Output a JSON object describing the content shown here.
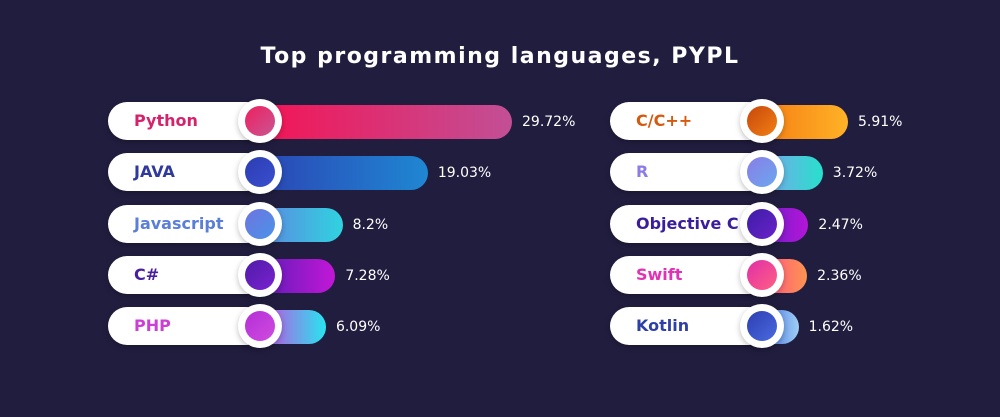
{
  "chart_data": {
    "type": "bar",
    "title": "Top programming languages, PYPL",
    "left": [
      {
        "name": "Python",
        "value": 29.72,
        "label": "29.72%",
        "text_color": "#d6226b",
        "dot_from": "#ee1f5e",
        "dot_to": "#c95694",
        "bar_from": "#f31455",
        "bar_to": "#c24f95"
      },
      {
        "name": "JAVA",
        "value": 19.03,
        "label": "19.03%",
        "text_color": "#2f3a9c",
        "dot_from": "#2b3db1",
        "dot_to": "#3a4fd0",
        "bar_from": "#2b45b4",
        "bar_to": "#1f87d3"
      },
      {
        "name": "Javascript",
        "value": 8.2,
        "label": "8.2%",
        "text_color": "#5b7fd8",
        "dot_from": "#6e74df",
        "dot_to": "#4a93e8",
        "bar_from": "#5f86e0",
        "bar_to": "#2fd3e0"
      },
      {
        "name": "C#",
        "value": 7.28,
        "label": "7.28%",
        "text_color": "#4a1ea0",
        "dot_from": "#4f1ba8",
        "dot_to": "#7a22d0",
        "bar_from": "#5b1cb8",
        "bar_to": "#c217d6"
      },
      {
        "name": "PHP",
        "value": 6.09,
        "label": "6.09%",
        "text_color": "#cb3fd6",
        "dot_from": "#b32fd6",
        "dot_to": "#d04be0",
        "bar_from": "#d044e0",
        "bar_to": "#27e5f0"
      }
    ],
    "right": [
      {
        "name": "C/C++",
        "value": 5.91,
        "label": "5.91%",
        "text_color": "#d45a10",
        "dot_from": "#c8470b",
        "dot_to": "#f17f14",
        "bar_from": "#f57d14",
        "bar_to": "#ffb226"
      },
      {
        "name": "R",
        "value": 3.72,
        "label": "3.72%",
        "text_color": "#8c7ce8",
        "dot_from": "#8a7de6",
        "dot_to": "#6aa7ef",
        "bar_from": "#7fa3ee",
        "bar_to": "#27e0cc"
      },
      {
        "name": "Objective C",
        "value": 2.47,
        "label": "2.47%",
        "text_color": "#3a1d9c",
        "dot_from": "#3c1da8",
        "dot_to": "#6a22c8",
        "bar_from": "#6a1fc9",
        "bar_to": "#b515d8"
      },
      {
        "name": "Swift",
        "value": 2.36,
        "label": "2.36%",
        "text_color": "#e032b5",
        "dot_from": "#e02fa8",
        "dot_to": "#ff5f83",
        "bar_from": "#ff4f8a",
        "bar_to": "#ff944f"
      },
      {
        "name": "Kotlin",
        "value": 1.62,
        "label": "1.62%",
        "text_color": "#2e3fa8",
        "dot_from": "#2c3eb0",
        "dot_to": "#4a6ae0",
        "bar_from": "#3f66e0",
        "bar_to": "#9ed0f5"
      }
    ]
  }
}
